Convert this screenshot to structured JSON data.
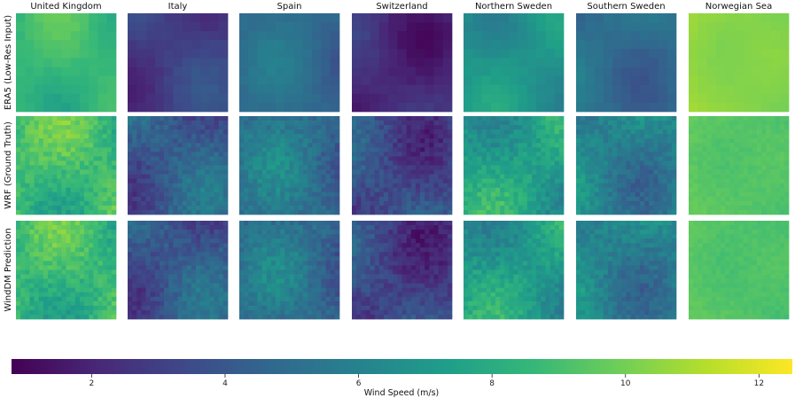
{
  "chart_data": {
    "type": "heatmap",
    "columns": [
      "United Kingdom",
      "Italy",
      "Spain",
      "Switzerland",
      "Northern Sweden",
      "Southern Sweden",
      "Norwegian Sea"
    ],
    "rows": [
      "ERA5 (Low-Res Input)",
      "WRF (Ground Truth)",
      "WindDM Prediction"
    ],
    "colorbar": {
      "label": "Wind Speed (m/s)",
      "range": [
        0.8,
        12.5
      ],
      "ticks": [
        2,
        4,
        6,
        8,
        10,
        12
      ],
      "colormap": "viridis"
    },
    "approx_mean_wind_speed": {
      "United Kingdom": [
        8.6,
        8.8,
        8.6
      ],
      "Italy": [
        3.0,
        4.2,
        4.0
      ],
      "Spain": [
        4.8,
        5.0,
        4.9
      ],
      "Switzerland": [
        2.2,
        3.5,
        3.2
      ],
      "Northern Sweden": [
        6.8,
        7.4,
        7.2
      ],
      "Southern Sweden": [
        5.0,
        6.0,
        6.0
      ],
      "Norwegian Sea": [
        10.4,
        9.4,
        9.3
      ]
    }
  },
  "colors": {
    "viridis": [
      "#440154",
      "#482878",
      "#3e4989",
      "#31688e",
      "#26828e",
      "#1f9e89",
      "#35b779",
      "#6ece58",
      "#b5de2b",
      "#fde725"
    ]
  }
}
